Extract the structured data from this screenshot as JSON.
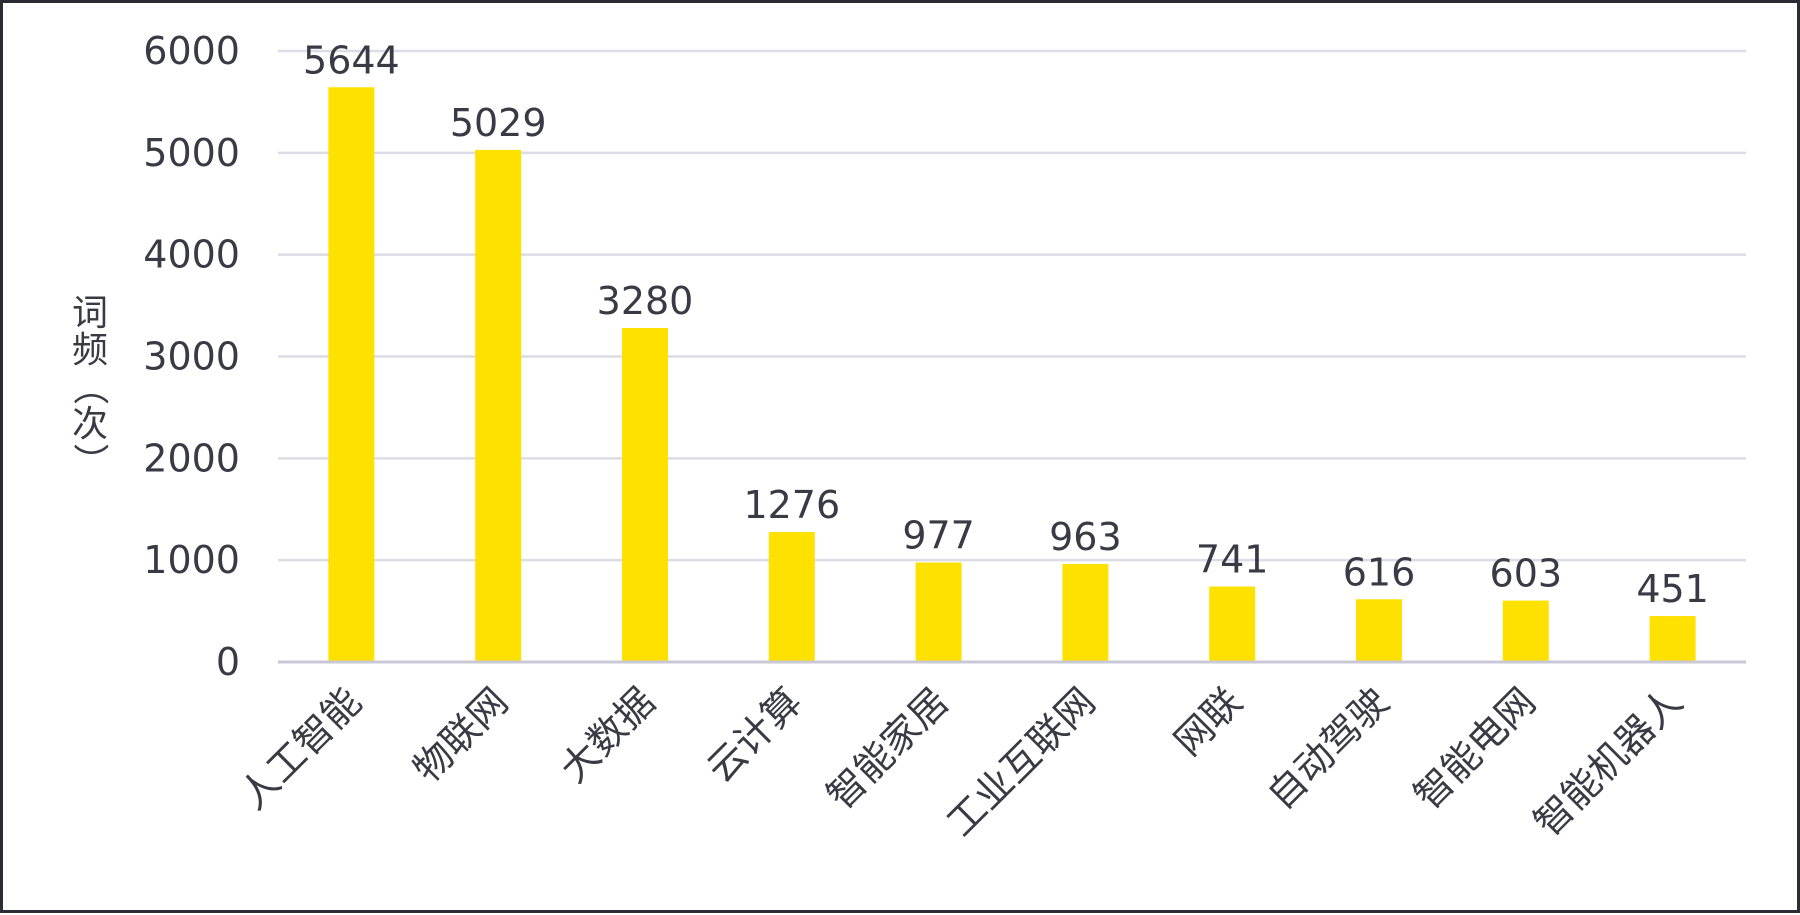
{
  "chart_data": {
    "type": "bar",
    "categories": [
      "人工智能",
      "物联网",
      "大数据",
      "云计算",
      "智能家居",
      "工业互联网",
      "网联",
      "自动驾驶",
      "智能电网",
      "智能机器人"
    ],
    "values": [
      5644,
      5029,
      3280,
      1276,
      977,
      963,
      741,
      616,
      603,
      451
    ],
    "title": "",
    "xlabel": "",
    "ylabel": "词频（次）",
    "ylabel_chars": [
      "词",
      "频",
      "（",
      "次",
      "）"
    ],
    "ylim": [
      0,
      6000
    ],
    "yticks": [
      0,
      1000,
      2000,
      3000,
      4000,
      5000,
      6000
    ],
    "grid": true,
    "legend": "none",
    "bar_color": "#FFE100",
    "grid_color": "#dcdce4",
    "axis_color": "#c9c9d6"
  }
}
